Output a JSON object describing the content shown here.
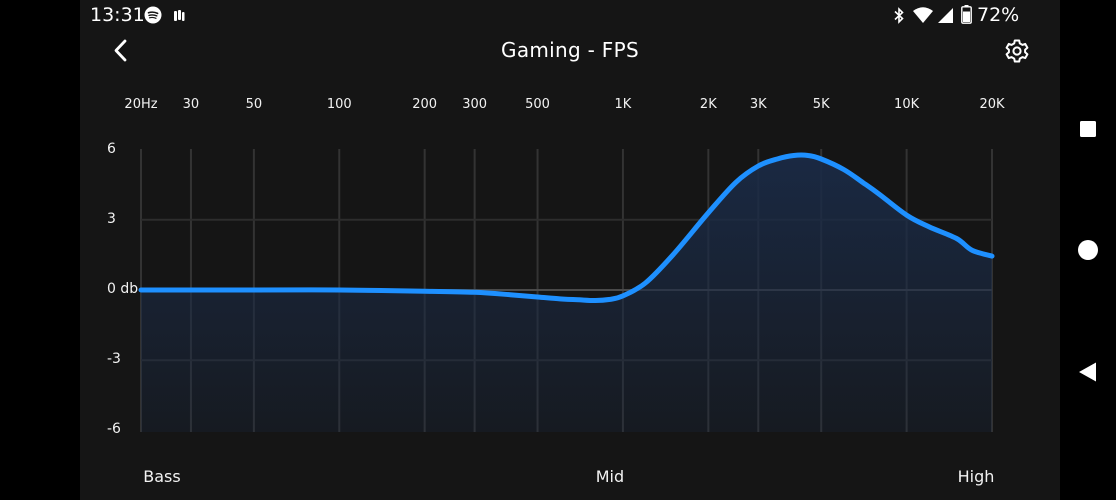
{
  "status_bar": {
    "time": "13:31",
    "left_icons": [
      "spotify-icon",
      "app-notification-icon"
    ],
    "right_icons": [
      "bluetooth-icon",
      "wifi-icon",
      "cell-signal-icon",
      "battery-icon"
    ],
    "battery": "72%"
  },
  "header": {
    "title": "Gaming - FPS",
    "back_icon": "chevron-left-icon",
    "settings_icon": "gear-icon"
  },
  "nav_bar": {
    "icons": [
      "recents-square-icon",
      "home-circle-icon",
      "back-triangle-icon"
    ]
  },
  "chart_data": {
    "type": "area",
    "x_scale": "log",
    "x_unit": "Hz",
    "xlim": [
      20,
      20000
    ],
    "ylim": [
      -6,
      6
    ],
    "x_ticks": [
      {
        "value": 20,
        "label": "20Hz"
      },
      {
        "value": 30,
        "label": "30"
      },
      {
        "value": 50,
        "label": "50"
      },
      {
        "value": 100,
        "label": "100"
      },
      {
        "value": 200,
        "label": "200"
      },
      {
        "value": 300,
        "label": "300"
      },
      {
        "value": 500,
        "label": "500"
      },
      {
        "value": 1000,
        "label": "1K"
      },
      {
        "value": 2000,
        "label": "2K"
      },
      {
        "value": 3000,
        "label": "3K"
      },
      {
        "value": 5000,
        "label": "5K"
      },
      {
        "value": 10000,
        "label": "10K"
      },
      {
        "value": 20000,
        "label": "20K"
      }
    ],
    "y_ticks": [
      {
        "value": 6,
        "label": "6"
      },
      {
        "value": 3,
        "label": "3"
      },
      {
        "value": 0,
        "label": "0 db"
      },
      {
        "value": -3,
        "label": "-3"
      },
      {
        "value": -6,
        "label": "-6"
      }
    ],
    "band_labels": [
      {
        "value": 20,
        "label": "Bass"
      },
      {
        "value": 900,
        "label": "Mid"
      },
      {
        "value": 20000,
        "label": "High"
      }
    ],
    "series": [
      {
        "x": [
          20,
          50,
          100,
          200,
          300,
          400,
          500,
          600,
          700,
          800,
          900,
          1000,
          1200,
          1500,
          2000,
          2500,
          3000,
          3500,
          4000,
          4500,
          5000,
          6000,
          7000,
          8000,
          10000,
          12000,
          15000,
          17000,
          20000
        ],
        "y": [
          0,
          0,
          0,
          -0.05,
          -0.1,
          -0.2,
          -0.3,
          -0.38,
          -0.42,
          -0.45,
          -0.4,
          -0.25,
          0.3,
          1.5,
          3.3,
          4.6,
          5.3,
          5.6,
          5.75,
          5.75,
          5.6,
          5.15,
          4.6,
          4.1,
          3.2,
          2.7,
          2.2,
          1.7,
          1.45
        ]
      }
    ],
    "line_color": "#1e90ff",
    "fill_color": "#1a2a45",
    "grid": true
  }
}
